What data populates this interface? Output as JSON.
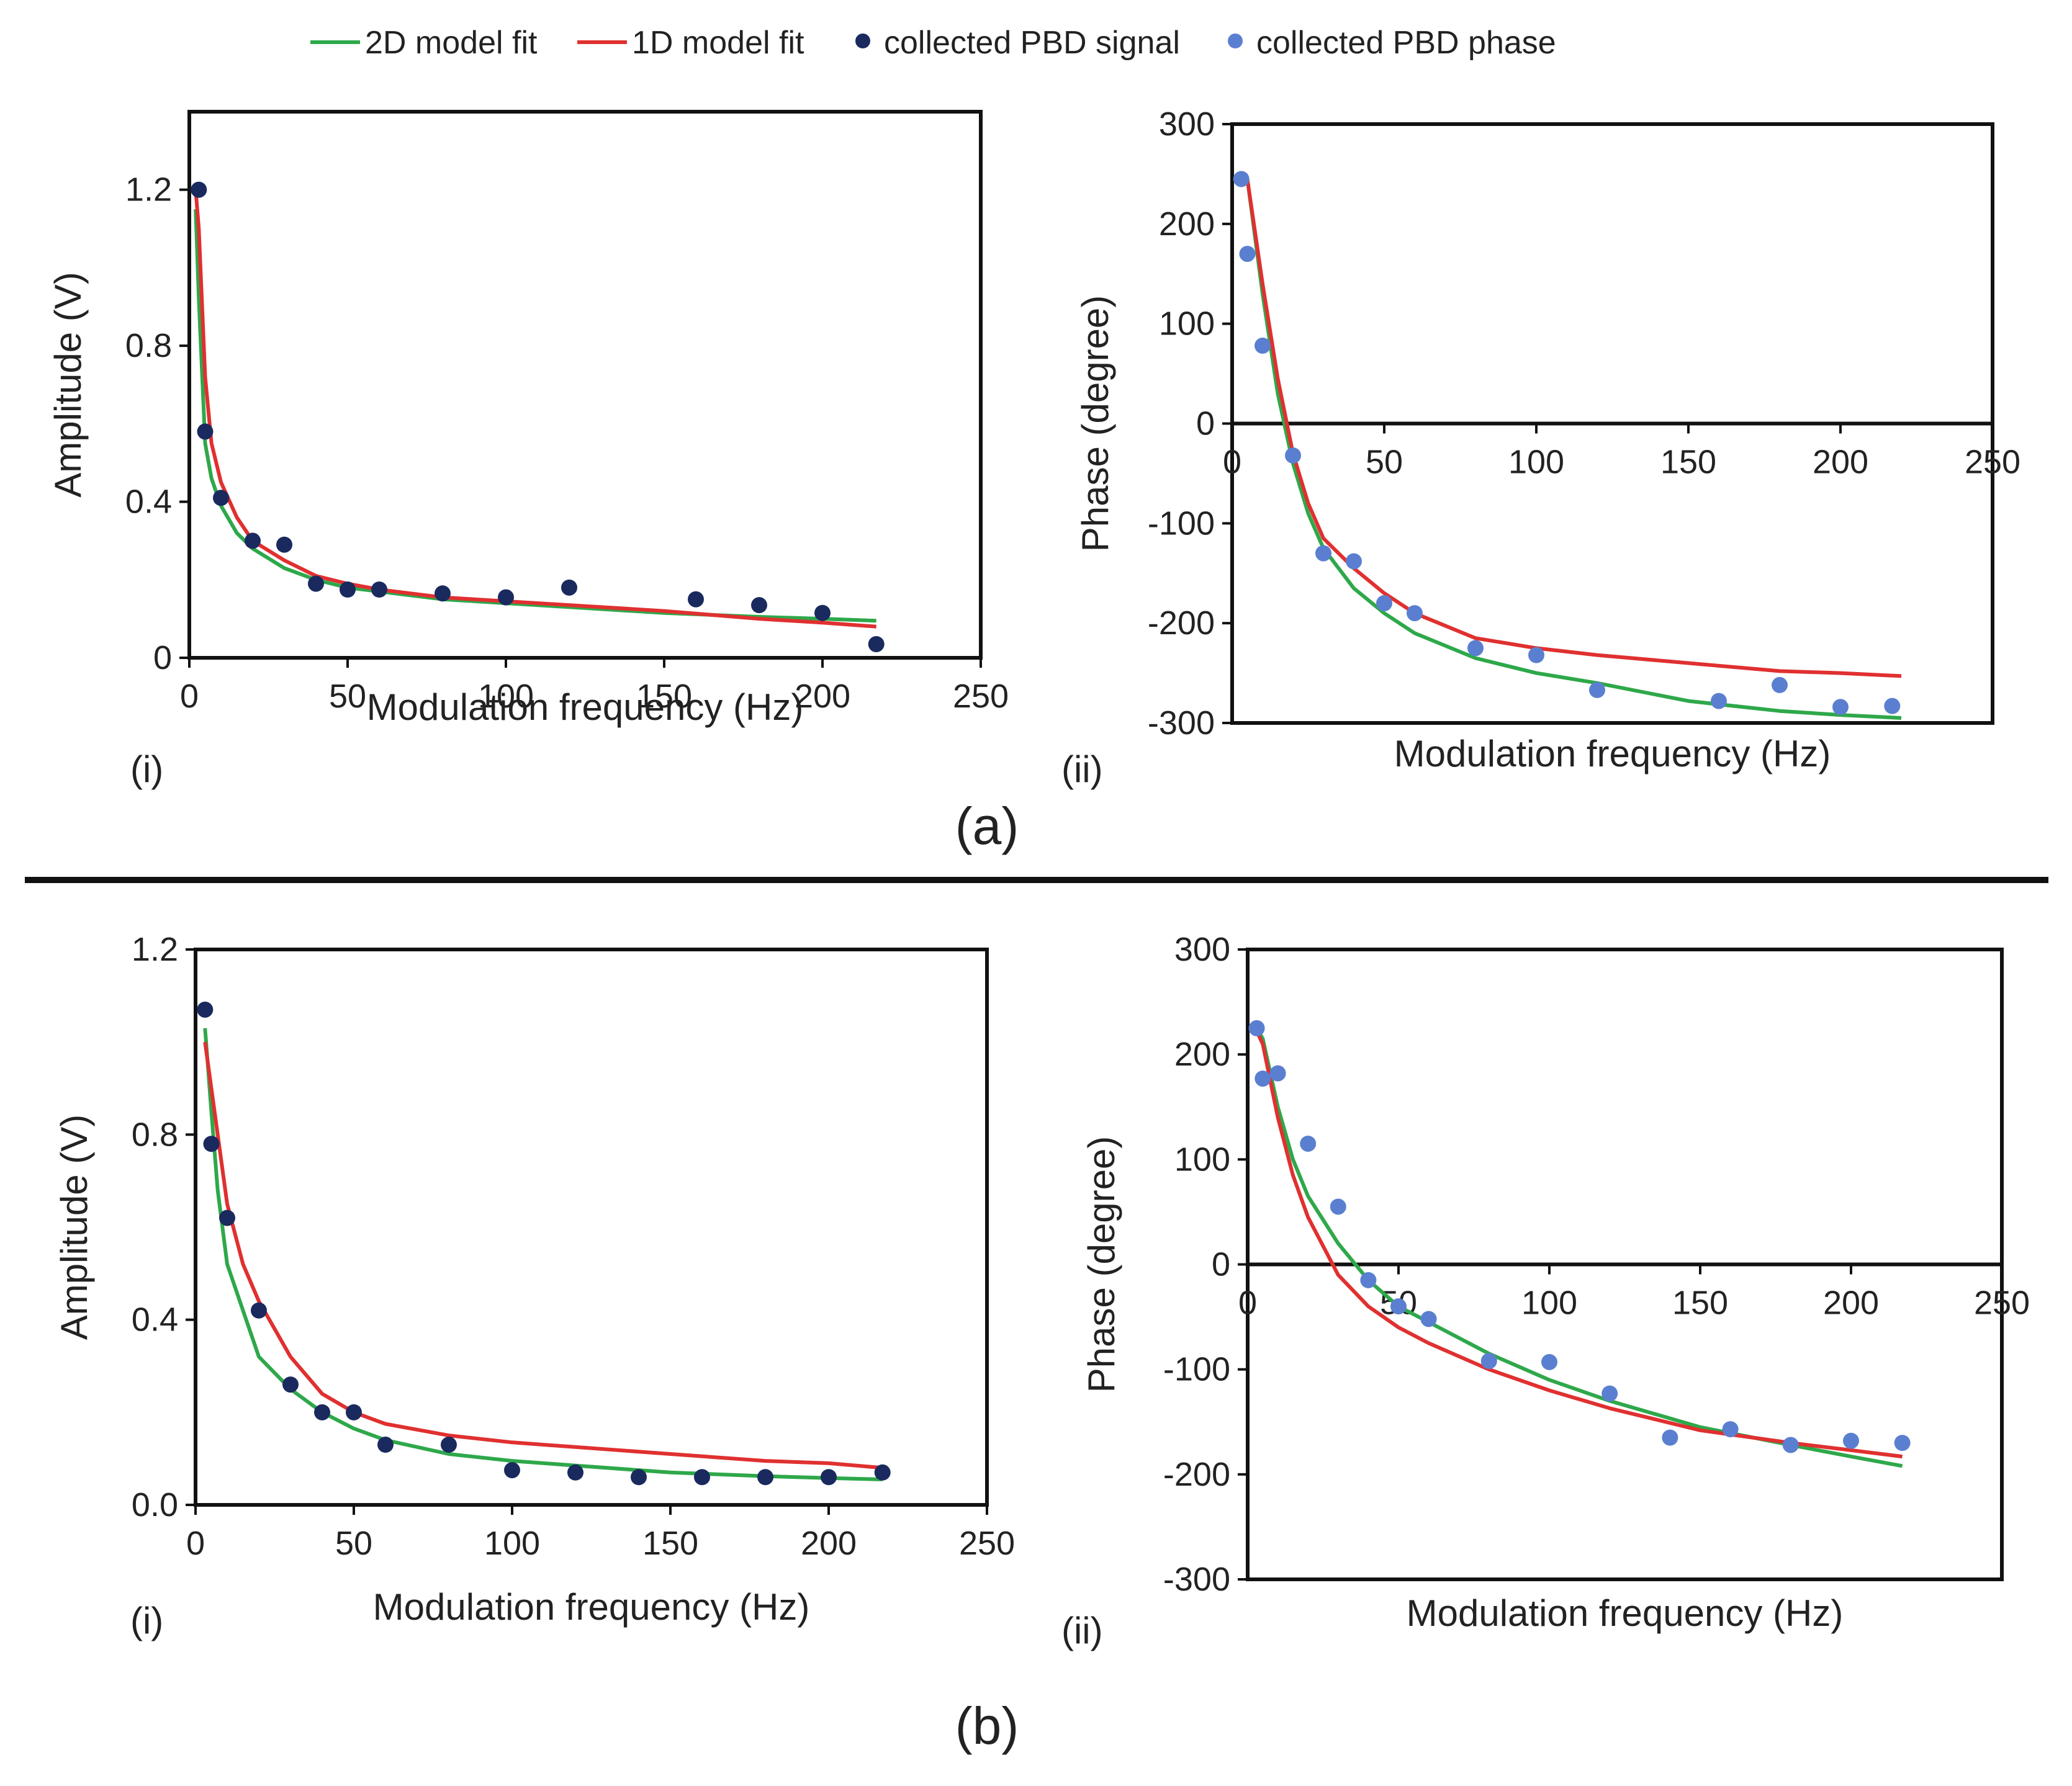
{
  "legend": {
    "entries": [
      {
        "label": "2D model fit",
        "kind": "line",
        "color": "#2ea84a"
      },
      {
        "label": "1D model fit",
        "kind": "line",
        "color": "#e03030"
      },
      {
        "label": "collected PBD signal",
        "kind": "dot",
        "color": "#1a2a5e"
      },
      {
        "label": "collected PBD phase",
        "kind": "dot",
        "color": "#5b7fd0"
      }
    ]
  },
  "sections": [
    {
      "label": "(a)",
      "panel_labels": [
        "(i)",
        "(ii)"
      ]
    },
    {
      "label": "(b)",
      "panel_labels": [
        "(i)",
        "(ii)"
      ]
    }
  ],
  "chart_data": [
    {
      "id": "a-i",
      "type": "line",
      "section": "(a)",
      "panel": "(i)",
      "xlabel": "Modulation frequency (Hz)",
      "ylabel": "Amplitude (V)",
      "xlim": [
        0,
        250
      ],
      "ylim": [
        0,
        1.4
      ],
      "xticks": [
        0,
        50,
        100,
        150,
        200,
        250
      ],
      "xtick_labels": [
        "0",
        "50",
        "100",
        "150",
        "200",
        "250"
      ],
      "yticks": [
        0,
        0.4,
        0.8,
        1.2
      ],
      "ytick_labels": [
        "0",
        "0.4",
        "0.8",
        "1.2"
      ],
      "series": [
        {
          "name": "2D model fit",
          "color": "#2ea84a",
          "x": [
            2,
            3,
            5,
            7,
            10,
            15,
            20,
            30,
            40,
            50,
            60,
            80,
            100,
            120,
            150,
            180,
            200,
            217
          ],
          "y": [
            1.15,
            0.92,
            0.55,
            0.46,
            0.39,
            0.32,
            0.28,
            0.23,
            0.2,
            0.18,
            0.17,
            0.15,
            0.14,
            0.13,
            0.115,
            0.105,
            0.1,
            0.095
          ]
        },
        {
          "name": "1D model fit",
          "color": "#e03030",
          "x": [
            2,
            3,
            5,
            7,
            10,
            15,
            20,
            30,
            40,
            50,
            60,
            80,
            100,
            120,
            150,
            180,
            200,
            217
          ],
          "y": [
            1.2,
            1.1,
            0.72,
            0.55,
            0.45,
            0.36,
            0.3,
            0.25,
            0.21,
            0.19,
            0.175,
            0.155,
            0.145,
            0.135,
            0.12,
            0.1,
            0.09,
            0.08
          ]
        },
        {
          "name": "collected PBD signal",
          "color": "#1a2a5e",
          "marker": "dot",
          "x": [
            3,
            5,
            10,
            20,
            30,
            40,
            50,
            60,
            80,
            100,
            120,
            160,
            180,
            200,
            217
          ],
          "y": [
            1.2,
            0.58,
            0.41,
            0.3,
            0.29,
            0.19,
            0.175,
            0.175,
            0.165,
            0.155,
            0.18,
            0.15,
            0.135,
            0.115,
            0.035
          ]
        }
      ]
    },
    {
      "id": "a-ii",
      "type": "line",
      "section": "(a)",
      "panel": "(ii)",
      "xlabel": "Modulation frequency (Hz)",
      "ylabel": "Phase (degree)",
      "xlim": [
        0,
        250
      ],
      "ylim": [
        -300,
        300
      ],
      "xticks": [
        0,
        50,
        100,
        150,
        200,
        250
      ],
      "xtick_labels": [
        "0",
        "50",
        "100",
        "150",
        "200",
        "250"
      ],
      "yticks": [
        300,
        200,
        100,
        0,
        -100,
        -200,
        -300
      ],
      "ytick_labels": [
        "300",
        "200",
        "100",
        "0",
        "-100",
        "-200",
        "-300"
      ],
      "series": [
        {
          "name": "2D model fit",
          "color": "#2ea84a",
          "x": [
            2,
            5,
            10,
            15,
            20,
            25,
            30,
            40,
            50,
            60,
            80,
            100,
            120,
            150,
            180,
            200,
            220
          ],
          "y": [
            245,
            245,
            130,
            30,
            -40,
            -90,
            -125,
            -165,
            -190,
            -210,
            -235,
            -250,
            -260,
            -278,
            -288,
            -292,
            -295
          ]
        },
        {
          "name": "1D model fit",
          "color": "#e03030",
          "x": [
            2,
            5,
            10,
            15,
            20,
            25,
            30,
            40,
            50,
            60,
            80,
            100,
            120,
            150,
            180,
            200,
            220
          ],
          "y": [
            245,
            245,
            140,
            45,
            -30,
            -80,
            -115,
            -145,
            -170,
            -190,
            -215,
            -225,
            -232,
            -240,
            -248,
            -250,
            -253
          ]
        },
        {
          "name": "collected PBD phase",
          "color": "#5b7fd0",
          "marker": "dot",
          "x": [
            3,
            5,
            10,
            20,
            30,
            40,
            50,
            60,
            80,
            100,
            120,
            160,
            180,
            200,
            217
          ],
          "y": [
            245,
            170,
            78,
            -32,
            -130,
            -138,
            -180,
            -190,
            -225,
            -232,
            -267,
            -278,
            -262,
            -284,
            -283
          ]
        }
      ]
    },
    {
      "id": "b-i",
      "type": "line",
      "section": "(b)",
      "panel": "(i)",
      "xlabel": "Modulation frequency (Hz)",
      "ylabel": "Amplitude (V)",
      "xlim": [
        0,
        250
      ],
      "ylim": [
        0,
        1.2
      ],
      "xticks": [
        0,
        50,
        100,
        150,
        200,
        250
      ],
      "xtick_labels": [
        "0",
        "50",
        "100",
        "150",
        "200",
        "250"
      ],
      "yticks": [
        0,
        0.4,
        0.8,
        1.2
      ],
      "ytick_labels": [
        "0.0",
        "0.4",
        "0.8",
        "1.2"
      ],
      "series": [
        {
          "name": "2D model fit",
          "color": "#2ea84a",
          "x": [
            3,
            5,
            7,
            10,
            15,
            20,
            30,
            40,
            50,
            60,
            80,
            100,
            120,
            150,
            180,
            200,
            217
          ],
          "y": [
            1.03,
            0.85,
            0.68,
            0.52,
            0.42,
            0.32,
            0.25,
            0.2,
            0.165,
            0.14,
            0.11,
            0.095,
            0.085,
            0.07,
            0.062,
            0.058,
            0.055
          ]
        },
        {
          "name": "1D model fit",
          "color": "#e03030",
          "x": [
            3,
            5,
            7,
            10,
            15,
            20,
            30,
            40,
            50,
            60,
            80,
            100,
            120,
            150,
            180,
            200,
            217
          ],
          "y": [
            1.0,
            0.9,
            0.8,
            0.65,
            0.52,
            0.44,
            0.32,
            0.24,
            0.2,
            0.175,
            0.15,
            0.135,
            0.125,
            0.11,
            0.095,
            0.09,
            0.08
          ]
        },
        {
          "name": "collected PBD signal",
          "color": "#1a2a5e",
          "marker": "dot",
          "x": [
            3,
            5,
            10,
            20,
            30,
            40,
            50,
            60,
            80,
            100,
            120,
            140,
            160,
            180,
            200,
            217
          ],
          "y": [
            1.07,
            0.78,
            0.62,
            0.42,
            0.26,
            0.2,
            0.2,
            0.13,
            0.13,
            0.075,
            0.07,
            0.06,
            0.06,
            0.06,
            0.06,
            0.07
          ]
        }
      ]
    },
    {
      "id": "b-ii",
      "type": "line",
      "section": "(b)",
      "panel": "(ii)",
      "xlabel": "Modulation frequency (Hz)",
      "ylabel": "Phase (degree)",
      "xlim": [
        0,
        250
      ],
      "ylim": [
        -300,
        300
      ],
      "xticks": [
        0,
        50,
        100,
        150,
        200,
        250
      ],
      "xtick_labels": [
        "0",
        "50",
        "100",
        "150",
        "200",
        "250"
      ],
      "yticks": [
        300,
        200,
        100,
        0,
        -100,
        -200,
        -300
      ],
      "ytick_labels": [
        "300",
        "200",
        "100",
        "0",
        "-100",
        "-200",
        "-300"
      ],
      "series": [
        {
          "name": "2D model fit",
          "color": "#2ea84a",
          "x": [
            3,
            5,
            10,
            15,
            20,
            30,
            40,
            50,
            60,
            80,
            100,
            120,
            150,
            180,
            200,
            217
          ],
          "y": [
            225,
            215,
            150,
            100,
            65,
            20,
            -15,
            -40,
            -55,
            -85,
            -110,
            -130,
            -155,
            -172,
            -183,
            -192
          ]
        },
        {
          "name": "1D model fit",
          "color": "#e03030",
          "x": [
            3,
            5,
            10,
            15,
            20,
            30,
            40,
            50,
            60,
            80,
            100,
            120,
            150,
            180,
            200,
            217
          ],
          "y": [
            222,
            210,
            140,
            85,
            45,
            -10,
            -40,
            -60,
            -75,
            -100,
            -120,
            -137,
            -158,
            -170,
            -177,
            -183
          ]
        },
        {
          "name": "collected PBD phase",
          "color": "#5b7fd0",
          "marker": "dot",
          "x": [
            3,
            5,
            10,
            20,
            30,
            40,
            50,
            60,
            80,
            100,
            120,
            140,
            160,
            180,
            200,
            217
          ],
          "y": [
            225,
            177,
            182,
            115,
            55,
            -15,
            -40,
            -52,
            -92,
            -93,
            -123,
            -165,
            -157,
            -172,
            -168,
            -170
          ]
        }
      ]
    }
  ]
}
